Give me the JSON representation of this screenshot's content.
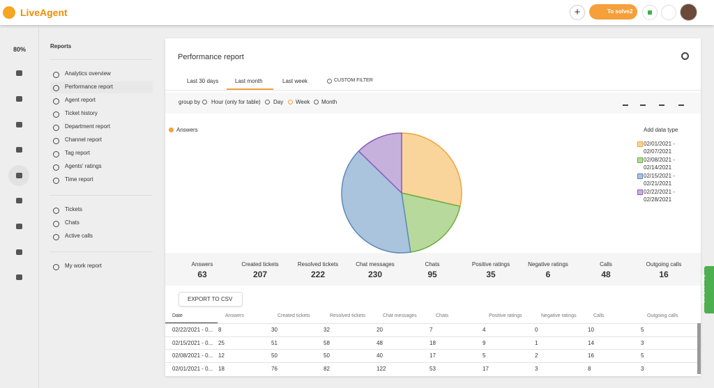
{
  "header": {
    "brand": "LiveAgent",
    "to_solve": "To solve",
    "to_solve_count": 2
  },
  "sidebar": {
    "zoom": "80%"
  },
  "reports_nav": {
    "title": "Reports",
    "groups": [
      [
        "Analytics overview",
        "Performance report",
        "Agent report",
        "Ticket history",
        "Department report",
        "Channel report",
        "Tag report",
        "Agents' ratings",
        "Time report"
      ],
      [
        "Tickets",
        "Chats",
        "Active calls"
      ],
      [
        "My work report"
      ]
    ]
  },
  "report": {
    "title": "Performance report",
    "tabs": [
      "Last 30 days",
      "Last month",
      "Last week",
      "CUSTOM FILTER"
    ],
    "group_by": {
      "label": "group by",
      "options": [
        "Hour (only for table)",
        "Day",
        "Week",
        "Month"
      ]
    }
  },
  "chart_data": {
    "type": "pie",
    "series_name": "Answers",
    "add_data_type": "Add data type",
    "categories": [
      "02/01/2021 - 02/07/2021",
      "02/08/2021 - 02/14/2021",
      "02/15/2021 - 02/21/2021",
      "02/22/2021 - 02/28/2021"
    ],
    "values": [
      18,
      12,
      25,
      8
    ],
    "colors": [
      "#f9d59b",
      "#b7d99c",
      "#a9c4dc",
      "#c6b1dd"
    ],
    "stroke_colors": [
      "#f0a23a",
      "#6aab3e",
      "#5a8ab8",
      "#8a5fb8"
    ]
  },
  "summary": {
    "labels": [
      "Answers",
      "Created tickets",
      "Resolved tickets",
      "Chat messages",
      "Chats",
      "Positive ratings",
      "Negative ratings",
      "Calls",
      "Outgoing calls"
    ],
    "values": [
      63,
      207,
      222,
      230,
      95,
      35,
      6,
      48,
      16
    ]
  },
  "table": {
    "export": "EXPORT TO CSV",
    "columns": [
      "Date",
      "Answers",
      "Created tickets",
      "Resolved tickets",
      "Chat messages",
      "Chats",
      "Positive ratings",
      "Negative ratings",
      "Calls",
      "Outgoing calls"
    ],
    "rows": [
      [
        "02/22/2021 - 0...",
        8,
        30,
        32,
        20,
        7,
        4,
        0,
        10,
        5
      ],
      [
        "02/15/2021 - 0...",
        25,
        51,
        58,
        48,
        18,
        9,
        1,
        14,
        3
      ],
      [
        "02/08/2021 - 0...",
        12,
        50,
        50,
        40,
        17,
        5,
        2,
        16,
        5
      ],
      [
        "02/01/2021 - 0...",
        18,
        76,
        82,
        122,
        53,
        17,
        3,
        8,
        3
      ]
    ]
  },
  "live_help": "Get Live Help"
}
